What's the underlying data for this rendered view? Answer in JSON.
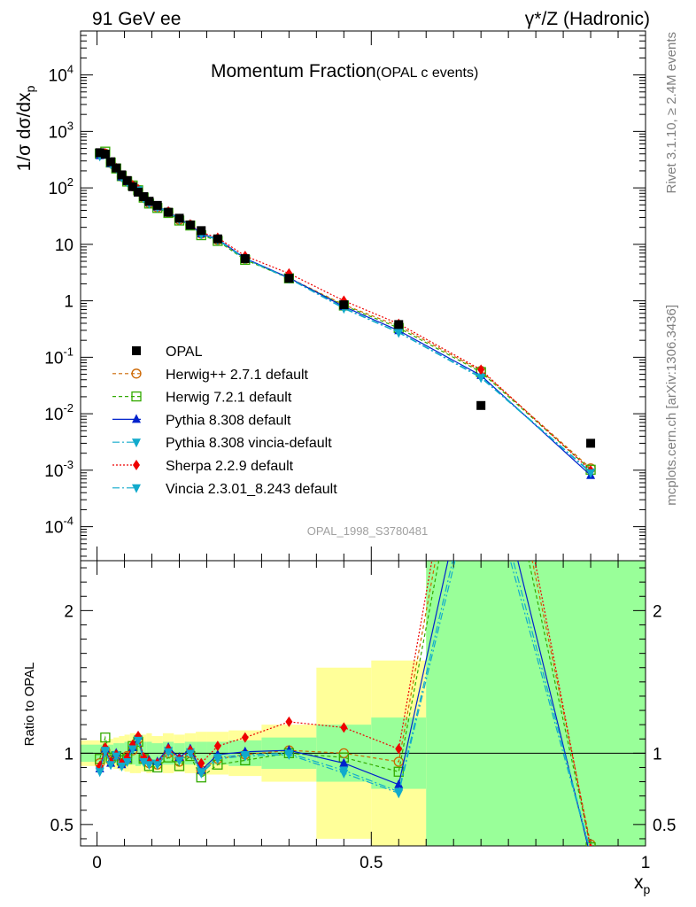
{
  "header": {
    "left": "91 GeV ee",
    "right": "γ*/Z (Hadronic)"
  },
  "side_labels": {
    "rivet": "Rivet 3.1.10, ≥ 2.4M events",
    "mcplots": "mcplots.cern.ch [arXiv:1306.3436]"
  },
  "chart_data": {
    "type": "line",
    "title": "Momentum Fraction",
    "subtitle": "(OPAL c events)",
    "analysis_tag": "OPAL_1998_S3780481",
    "xlabel": "x",
    "xlabel_sub": "p",
    "ylabel": "1/σ dσ/dx",
    "ylabel_sub": "p",
    "ratio_ylabel": "Ratio to OPAL",
    "yscale": "log",
    "xlim": [
      -0.03,
      1.0
    ],
    "ylim": [
      2.5e-05,
      60000
    ],
    "ratio_ylim": [
      0.35,
      2.35
    ],
    "x_ticks": [
      "0",
      "0.5",
      "1"
    ],
    "y_ticks": [
      "10^-4",
      "10^-3",
      "10^-2",
      "10^-1",
      "1",
      "10",
      "10^2",
      "10^3",
      "10^4"
    ],
    "ratio_ticks": [
      "0.5",
      "1",
      "2"
    ],
    "legend_position": "lower-left",
    "x": [
      0.005,
      0.015,
      0.025,
      0.035,
      0.045,
      0.055,
      0.065,
      0.075,
      0.085,
      0.095,
      0.11,
      0.13,
      0.15,
      0.17,
      0.19,
      0.22,
      0.27,
      0.35,
      0.45,
      0.55,
      0.7,
      0.9
    ],
    "data": {
      "name": "OPAL",
      "values": [
        420,
        395,
        290,
        225,
        170,
        135,
        105,
        84,
        70,
        58,
        49,
        37,
        29,
        22,
        17.5,
        12.5,
        5.6,
        2.5,
        0.85,
        0.38,
        0.014,
        0.003
      ]
    },
    "series": [
      {
        "name": "Herwig++ 2.7.1 default",
        "color": "#cc6600",
        "marker": "circle-open",
        "dash": "4,3",
        "ratio": [
          0.93,
          1.02,
          0.95,
          0.98,
          0.93,
          0.98,
          1.02,
          1.1,
          0.96,
          0.93,
          0.92,
          1.0,
          0.94,
          1.0,
          0.88,
          0.96,
          0.99,
          1.02,
          1.0,
          0.94,
          4.1,
          0.36
        ]
      },
      {
        "name": "Herwig 7.2.1 default",
        "color": "#33aa00",
        "marker": "square-open",
        "dash": "4,3",
        "ratio": [
          0.96,
          1.11,
          0.97,
          0.98,
          0.95,
          0.96,
          1.05,
          1.08,
          0.96,
          0.91,
          0.9,
          0.97,
          0.91,
          0.98,
          0.83,
          0.92,
          0.95,
          1.0,
          0.97,
          0.87,
          3.9,
          0.34
        ]
      },
      {
        "name": "Pythia 8.308 default",
        "color": "#0022cc",
        "marker": "triangle-up",
        "dash": "",
        "ratio": [
          0.89,
          1.03,
          0.93,
          1.0,
          0.92,
          0.96,
          1.04,
          1.12,
          0.97,
          0.95,
          0.94,
          1.04,
          0.97,
          1.03,
          0.88,
          0.99,
          1.01,
          1.02,
          0.93,
          0.78,
          3.4,
          0.27
        ]
      },
      {
        "name": "Pythia 8.308 vincia-default",
        "color": "#11aacc",
        "marker": "triangle-down",
        "dash": "8,3,2,3",
        "ratio": [
          0.88,
          1.01,
          0.92,
          0.99,
          0.91,
          0.95,
          1.03,
          1.1,
          0.95,
          0.93,
          0.93,
          1.02,
          0.95,
          1.01,
          0.87,
          0.97,
          0.99,
          1.0,
          0.88,
          0.73,
          3.2,
          0.31
        ]
      },
      {
        "name": "Sherpa 2.2.9 default",
        "color": "#ee0000",
        "marker": "diamond",
        "dash": "2,2",
        "ratio": [
          0.91,
          1.04,
          0.94,
          0.99,
          0.93,
          0.97,
          1.06,
          1.12,
          0.97,
          0.94,
          0.93,
          1.03,
          0.96,
          1.02,
          0.93,
          1.05,
          1.11,
          1.22,
          1.18,
          1.03,
          4.3,
          0.33
        ]
      },
      {
        "name": "Vincia 2.3.01_8.243 default",
        "color": "#11aacc",
        "marker": "triangle-down",
        "dash": "8,3,2,3",
        "ratio": [
          0.87,
          1.02,
          0.92,
          0.98,
          0.91,
          0.94,
          1.03,
          1.09,
          0.94,
          0.92,
          0.92,
          1.01,
          0.95,
          1.0,
          0.86,
          0.96,
          0.98,
          0.99,
          0.86,
          0.72,
          3.1,
          0.3
        ]
      }
    ],
    "ratio_bands": [
      {
        "x0": -0.03,
        "x1": 0.01,
        "green": [
          0.94,
          1.06
        ],
        "yellow": [
          0.91,
          1.09
        ]
      },
      {
        "x0": 0.01,
        "x1": 0.02,
        "green": [
          0.95,
          1.05
        ],
        "yellow": [
          0.92,
          1.08
        ]
      },
      {
        "x0": 0.02,
        "x1": 0.03,
        "green": [
          0.94,
          1.06
        ],
        "yellow": [
          0.9,
          1.1
        ]
      },
      {
        "x0": 0.03,
        "x1": 0.04,
        "green": [
          0.93,
          1.07
        ],
        "yellow": [
          0.89,
          1.11
        ]
      },
      {
        "x0": 0.04,
        "x1": 0.05,
        "green": [
          0.93,
          1.07
        ],
        "yellow": [
          0.88,
          1.12
        ]
      },
      {
        "x0": 0.05,
        "x1": 0.06,
        "green": [
          0.92,
          1.08
        ],
        "yellow": [
          0.87,
          1.13
        ]
      },
      {
        "x0": 0.06,
        "x1": 0.07,
        "green": [
          0.92,
          1.08
        ],
        "yellow": [
          0.86,
          1.14
        ]
      },
      {
        "x0": 0.07,
        "x1": 0.08,
        "green": [
          0.91,
          1.09
        ],
        "yellow": [
          0.86,
          1.14
        ]
      },
      {
        "x0": 0.08,
        "x1": 0.09,
        "green": [
          0.92,
          1.08
        ],
        "yellow": [
          0.87,
          1.13
        ]
      },
      {
        "x0": 0.09,
        "x1": 0.1,
        "green": [
          0.92,
          1.08
        ],
        "yellow": [
          0.86,
          1.14
        ]
      },
      {
        "x0": 0.1,
        "x1": 0.12,
        "green": [
          0.93,
          1.07
        ],
        "yellow": [
          0.88,
          1.12
        ]
      },
      {
        "x0": 0.12,
        "x1": 0.14,
        "green": [
          0.92,
          1.08
        ],
        "yellow": [
          0.86,
          1.14
        ]
      },
      {
        "x0": 0.14,
        "x1": 0.16,
        "green": [
          0.93,
          1.07
        ],
        "yellow": [
          0.87,
          1.13
        ]
      },
      {
        "x0": 0.16,
        "x1": 0.18,
        "green": [
          0.92,
          1.08
        ],
        "yellow": [
          0.86,
          1.14
        ]
      },
      {
        "x0": 0.18,
        "x1": 0.2,
        "green": [
          0.92,
          1.08
        ],
        "yellow": [
          0.85,
          1.15
        ]
      },
      {
        "x0": 0.2,
        "x1": 0.24,
        "green": [
          0.92,
          1.08
        ],
        "yellow": [
          0.85,
          1.15
        ]
      },
      {
        "x0": 0.24,
        "x1": 0.3,
        "green": [
          0.91,
          1.09
        ],
        "yellow": [
          0.84,
          1.16
        ]
      },
      {
        "x0": 0.3,
        "x1": 0.4,
        "green": [
          0.89,
          1.11
        ],
        "yellow": [
          0.8,
          1.2
        ]
      },
      {
        "x0": 0.4,
        "x1": 0.5,
        "green": [
          0.8,
          1.2
        ],
        "yellow": [
          0.4,
          1.6
        ]
      },
      {
        "x0": 0.5,
        "x1": 0.6,
        "green": [
          0.75,
          1.25
        ],
        "yellow": [
          0.35,
          1.65
        ]
      },
      {
        "x0": 0.6,
        "x1": 1.0,
        "green": [
          0.35,
          2.35
        ],
        "yellow": [
          0.35,
          2.35
        ]
      }
    ]
  }
}
